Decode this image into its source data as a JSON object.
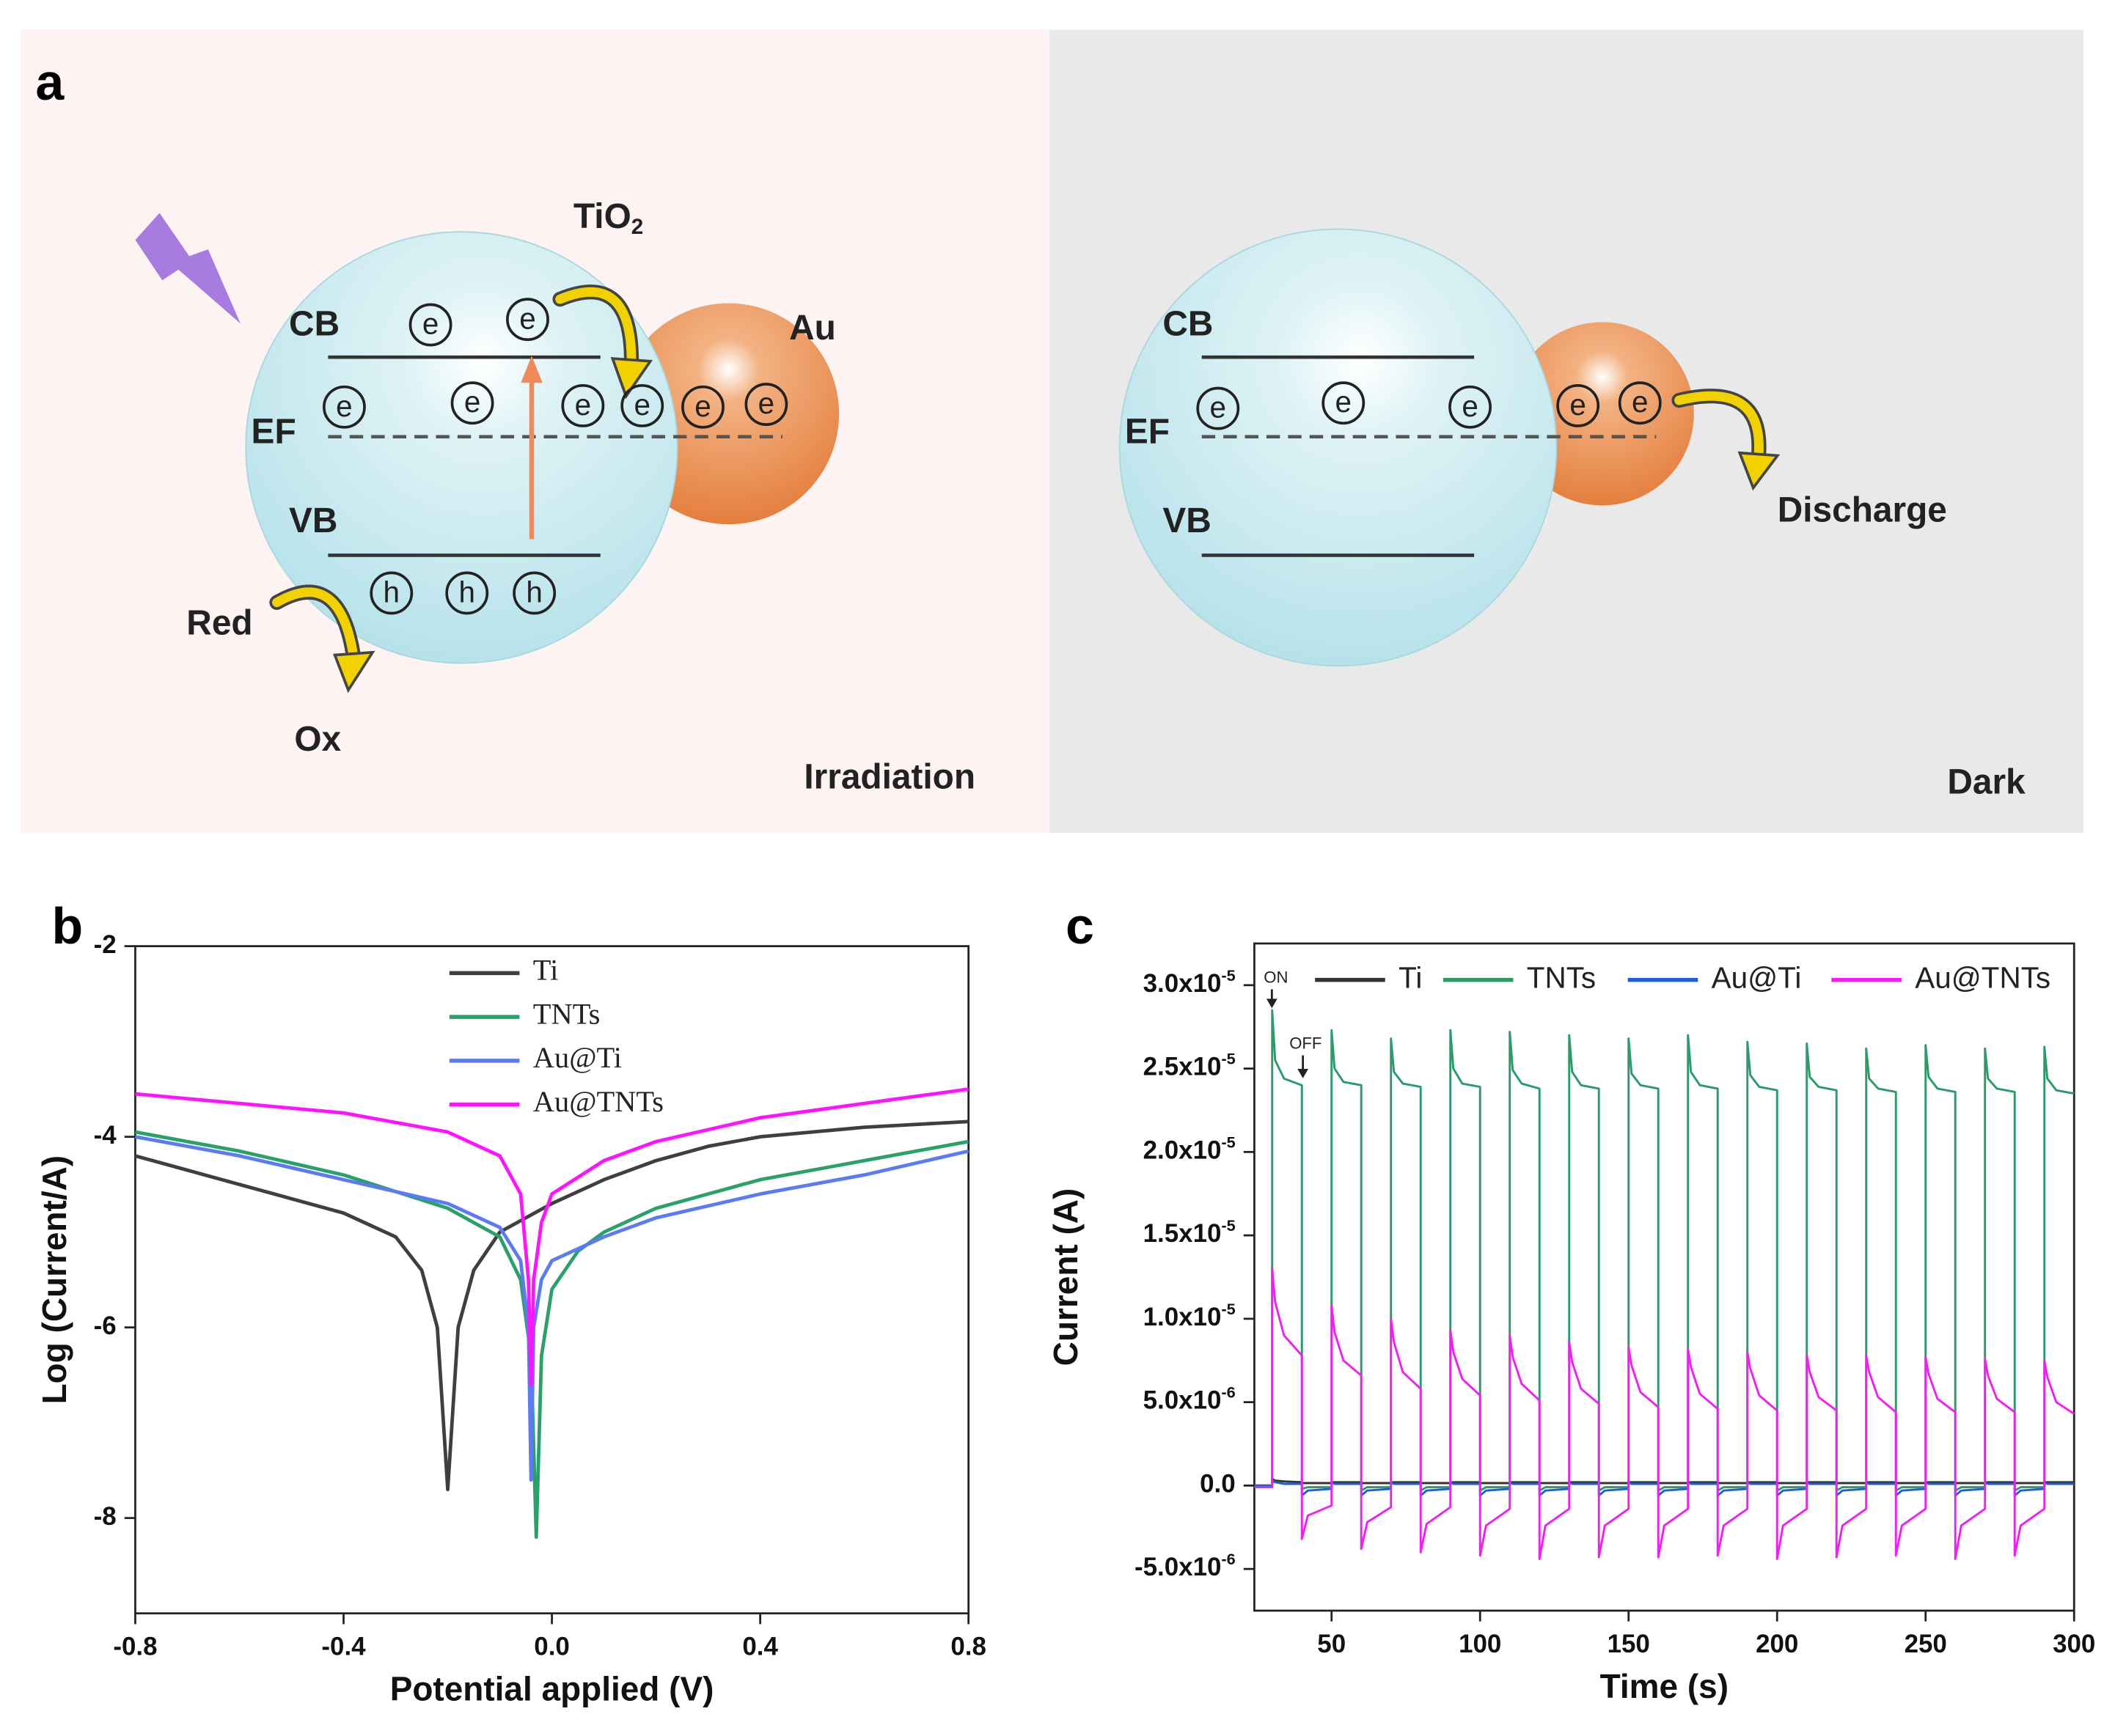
{
  "panel_a": {
    "label": "a",
    "left": {
      "material": "TiO2",
      "cb": "CB",
      "ef": "EF",
      "vb": "VB",
      "metal": "Au",
      "red": "Red",
      "ox": "Ox",
      "condition": "Irradiation"
    },
    "right": {
      "cb": "CB",
      "ef": "EF",
      "vb": "VB",
      "process": "Discharge",
      "condition": "Dark"
    },
    "electron": "e",
    "hole": "h"
  },
  "chart_data": [
    {
      "type": "line",
      "label": "b",
      "xlabel": "Potential applied (V)",
      "ylabel": "Log (Current/A)",
      "xlim": [
        -0.8,
        0.8
      ],
      "ylim": [
        -9,
        -2
      ],
      "xticks": [
        -0.8,
        -0.4,
        {
          "value": 0,
          "label": "0.0"
        },
        0.4,
        0.8
      ],
      "yticks": [
        -2,
        -4,
        -6,
        -8
      ],
      "legend": "top",
      "series": [
        {
          "name": "Ti",
          "color": "#3f3f3f",
          "x": [
            -0.8,
            -0.7,
            -0.6,
            -0.5,
            -0.4,
            -0.3,
            -0.25,
            -0.22,
            -0.2,
            -0.18,
            -0.15,
            -0.1,
            0,
            0.1,
            0.2,
            0.3,
            0.4,
            0.5,
            0.6,
            0.7,
            0.8
          ],
          "values": [
            -4.2,
            -4.35,
            -4.5,
            -4.65,
            -4.8,
            -5.05,
            -5.4,
            -6.0,
            -7.7,
            -6.0,
            -5.4,
            -5.0,
            -4.7,
            -4.45,
            -4.25,
            -4.1,
            -4.0,
            -3.95,
            -3.9,
            -3.87,
            -3.84
          ]
        },
        {
          "name": "TNTs",
          "color": "#2ca06a",
          "x": [
            -0.8,
            -0.6,
            -0.4,
            -0.2,
            -0.1,
            -0.06,
            -0.04,
            -0.03,
            -0.02,
            0,
            0.05,
            0.1,
            0.2,
            0.4,
            0.6,
            0.8
          ],
          "values": [
            -3.95,
            -4.15,
            -4.4,
            -4.75,
            -5.05,
            -5.5,
            -6.3,
            -8.2,
            -6.3,
            -5.6,
            -5.2,
            -5.0,
            -4.75,
            -4.45,
            -4.25,
            -4.05
          ]
        },
        {
          "name": "Au@Ti",
          "color": "#5d7bf0",
          "x": [
            -0.8,
            -0.6,
            -0.4,
            -0.2,
            -0.1,
            -0.06,
            -0.045,
            -0.04,
            -0.035,
            -0.02,
            0,
            0.1,
            0.2,
            0.4,
            0.6,
            0.8
          ],
          "values": [
            -4.0,
            -4.2,
            -4.45,
            -4.7,
            -4.95,
            -5.3,
            -6.0,
            -7.6,
            -6.0,
            -5.5,
            -5.3,
            -5.05,
            -4.85,
            -4.6,
            -4.4,
            -4.15
          ]
        },
        {
          "name": "Au@TNTs",
          "color": "#ff14ff",
          "x": [
            -0.8,
            -0.6,
            -0.4,
            -0.2,
            -0.1,
            -0.06,
            -0.045,
            -0.04,
            -0.035,
            -0.02,
            0,
            0.1,
            0.2,
            0.4,
            0.6,
            0.8
          ],
          "values": [
            -3.55,
            -3.65,
            -3.75,
            -3.95,
            -4.2,
            -4.6,
            -5.5,
            -6.6,
            -5.5,
            -4.9,
            -4.6,
            -4.25,
            -4.05,
            -3.8,
            -3.65,
            -3.5
          ]
        }
      ]
    },
    {
      "type": "line",
      "label": "c",
      "xlabel": "Time (s)",
      "ylabel": "Current (A)",
      "xlim": [
        24,
        300
      ],
      "ylim": [
        -7.5e-06,
        3.25e-05
      ],
      "xticks": [
        50,
        100,
        150,
        200,
        250,
        300
      ],
      "yticks": [
        {
          "value": -5e-06,
          "label": "-5.0x10-6"
        },
        {
          "value": 0,
          "label": "0.0"
        },
        {
          "value": 5e-06,
          "label": "5.0x10-6"
        },
        {
          "value": 1e-05,
          "label": "1.0x10-5"
        },
        {
          "value": 1.5e-05,
          "label": "1.5x10-5"
        },
        {
          "value": 2e-05,
          "label": "2.0x10-5"
        },
        {
          "value": 2.5e-05,
          "label": "2.5x10-5"
        },
        {
          "value": 3e-05,
          "label": "3.0x10-5"
        }
      ],
      "legend": "top",
      "annotations": [
        "ON",
        "OFF"
      ],
      "x": [
        24,
        30,
        30,
        31,
        34,
        40,
        40,
        42,
        50,
        50,
        51,
        54,
        60,
        60,
        62,
        70,
        70,
        71,
        74,
        80,
        80,
        82,
        90,
        90,
        91,
        94,
        100,
        100,
        102,
        110,
        110,
        111,
        114,
        120,
        120,
        122,
        130,
        130,
        131,
        134,
        140,
        140,
        142,
        150,
        150,
        151,
        154,
        160,
        160,
        162,
        170,
        170,
        171,
        174,
        180,
        180,
        182,
        190,
        190,
        191,
        194,
        200,
        200,
        202,
        210,
        210,
        211,
        214,
        220,
        220,
        222,
        230,
        230,
        231,
        234,
        240,
        240,
        242,
        250,
        250,
        251,
        254,
        260,
        260,
        262,
        270,
        270,
        271,
        274,
        280,
        280,
        282,
        290,
        290,
        291,
        294,
        300
      ],
      "series": [
        {
          "name": "Ti",
          "color": "#333333",
          "values": [
            0,
            0,
            4e-07,
            3e-07,
            2.5e-07,
            2e-07,
            1.5e-07,
            1.5e-07,
            1.5e-07,
            2e-07,
            2e-07,
            2e-07,
            2e-07,
            1.5e-07,
            1.5e-07,
            1.5e-07,
            2e-07,
            2e-07,
            2e-07,
            2e-07,
            1.5e-07,
            1.5e-07,
            1.5e-07,
            2e-07,
            2e-07,
            2e-07,
            2e-07,
            1.5e-07,
            1.5e-07,
            1.5e-07,
            2e-07,
            2e-07,
            2e-07,
            2e-07,
            1.5e-07,
            1.5e-07,
            1.5e-07,
            2e-07,
            2e-07,
            2e-07,
            2e-07,
            1.5e-07,
            1.5e-07,
            1.5e-07,
            2e-07,
            2e-07,
            2e-07,
            2e-07,
            1.5e-07,
            1.5e-07,
            1.5e-07,
            2e-07,
            2e-07,
            2e-07,
            2e-07,
            1.5e-07,
            1.5e-07,
            1.5e-07,
            2e-07,
            2e-07,
            2e-07,
            2e-07,
            1.5e-07,
            1.5e-07,
            1.5e-07,
            2e-07,
            2e-07,
            2e-07,
            2e-07,
            1.5e-07,
            1.5e-07,
            1.5e-07,
            2e-07,
            2e-07,
            2e-07,
            2e-07,
            1.5e-07,
            1.5e-07,
            1.5e-07,
            2e-07,
            2e-07,
            2e-07,
            2e-07,
            1.5e-07,
            1.5e-07,
            1.5e-07,
            2e-07,
            2e-07,
            2e-07,
            2e-07,
            1.5e-07,
            1.5e-07,
            1.5e-07,
            2e-07,
            2e-07,
            2e-07,
            2e-07
          ]
        },
        {
          "name": "TNTs",
          "color": "#2e9a6c",
          "values": [
            0,
            0,
            2.85e-05,
            2.55e-05,
            2.44e-05,
            2.4e-05,
            -2e-07,
            -1e-07,
            -1e-07,
            2.73e-05,
            2.5e-05,
            2.42e-05,
            2.4e-05,
            -3e-07,
            -1e-07,
            -1e-07,
            2.68e-05,
            2.48e-05,
            2.41e-05,
            2.39e-05,
            -3e-07,
            -1e-07,
            -1e-07,
            2.73e-05,
            2.5e-05,
            2.41e-05,
            2.39e-05,
            -3e-07,
            -1e-07,
            -1e-07,
            2.72e-05,
            2.49e-05,
            2.41e-05,
            2.38e-05,
            -3e-07,
            -1e-07,
            -1e-07,
            2.7e-05,
            2.48e-05,
            2.4e-05,
            2.38e-05,
            -3e-07,
            -1e-07,
            -1e-07,
            2.68e-05,
            2.47e-05,
            2.4e-05,
            2.38e-05,
            -3e-07,
            -1e-07,
            -1e-07,
            2.7e-05,
            2.48e-05,
            2.4e-05,
            2.38e-05,
            -3e-07,
            -1e-07,
            -1e-07,
            2.66e-05,
            2.46e-05,
            2.39e-05,
            2.37e-05,
            -3e-07,
            -1e-07,
            -1e-07,
            2.65e-05,
            2.45e-05,
            2.39e-05,
            2.37e-05,
            -3e-07,
            -1e-07,
            -1e-07,
            2.62e-05,
            2.44e-05,
            2.38e-05,
            2.36e-05,
            -3e-07,
            -1e-07,
            -1e-07,
            2.64e-05,
            2.45e-05,
            2.38e-05,
            2.36e-05,
            -3e-07,
            -1e-07,
            -1e-07,
            2.62e-05,
            2.44e-05,
            2.38e-05,
            2.36e-05,
            -3e-07,
            -1e-07,
            -1e-07,
            2.63e-05,
            2.44e-05,
            2.37e-05,
            2.35e-05
          ]
        },
        {
          "name": "Au@Ti",
          "color": "#1f5fd0",
          "values": [
            0,
            0,
            3e-07,
            2e-07,
            1e-07,
            1e-07,
            -6e-07,
            -3e-07,
            -2e-07,
            2e-07,
            1e-07,
            1e-07,
            1e-07,
            -6e-07,
            -3e-07,
            -2e-07,
            2e-07,
            1e-07,
            1e-07,
            1e-07,
            -6e-07,
            -3e-07,
            -2e-07,
            2e-07,
            1e-07,
            1e-07,
            1e-07,
            -6e-07,
            -3e-07,
            -2e-07,
            2e-07,
            1e-07,
            1e-07,
            1e-07,
            -6e-07,
            -3e-07,
            -2e-07,
            2e-07,
            1e-07,
            1e-07,
            1e-07,
            -6e-07,
            -3e-07,
            -2e-07,
            2e-07,
            1e-07,
            1e-07,
            1e-07,
            -6e-07,
            -3e-07,
            -2e-07,
            2e-07,
            1e-07,
            1e-07,
            1e-07,
            -6e-07,
            -3e-07,
            -2e-07,
            2e-07,
            1e-07,
            1e-07,
            1e-07,
            -6e-07,
            -3e-07,
            -2e-07,
            2e-07,
            1e-07,
            1e-07,
            1e-07,
            -6e-07,
            -3e-07,
            -2e-07,
            2e-07,
            1e-07,
            1e-07,
            1e-07,
            -6e-07,
            -3e-07,
            -2e-07,
            2e-07,
            1e-07,
            1e-07,
            1e-07,
            -6e-07,
            -3e-07,
            -2e-07,
            2e-07,
            1e-07,
            1e-07,
            1e-07,
            -6e-07,
            -3e-07,
            -2e-07,
            2e-07,
            1e-07,
            1e-07,
            1e-07
          ]
        },
        {
          "name": "Au@TNTs",
          "color": "#ee22ee",
          "values": [
            -1e-07,
            -1e-07,
            1.3e-05,
            1.1e-05,
            9e-06,
            7.8e-06,
            -3.2e-06,
            -1.8e-06,
            -1.2e-06,
            1.08e-05,
            9.2e-06,
            7.5e-06,
            6.6e-06,
            -3.8e-06,
            -2.2e-06,
            -1.3e-06,
            1e-05,
            8.6e-06,
            6.8e-06,
            5.8e-06,
            -4e-06,
            -2.3e-06,
            -1.3e-06,
            9.3e-06,
            8e-06,
            6.4e-06,
            5.4e-06,
            -4.2e-06,
            -2.4e-06,
            -1.4e-06,
            9e-06,
            7.7e-06,
            6.1e-06,
            5.1e-06,
            -4.4e-06,
            -2.4e-06,
            -1.4e-06,
            8.6e-06,
            7.4e-06,
            5.8e-06,
            4.9e-06,
            -4.3e-06,
            -2.4e-06,
            -1.4e-06,
            8.3e-06,
            7.2e-06,
            5.6e-06,
            4.7e-06,
            -4.3e-06,
            -2.4e-06,
            -1.4e-06,
            8.2e-06,
            7.1e-06,
            5.5e-06,
            4.6e-06,
            -4.2e-06,
            -2.4e-06,
            -1.4e-06,
            8e-06,
            7e-06,
            5.4e-06,
            4.5e-06,
            -4.4e-06,
            -2.4e-06,
            -1.4e-06,
            7.8e-06,
            6.8e-06,
            5.3e-06,
            4.5e-06,
            -4.3e-06,
            -2.4e-06,
            -1.4e-06,
            7.8e-06,
            6.8e-06,
            5.3e-06,
            4.4e-06,
            -4.2e-06,
            -2.4e-06,
            -1.4e-06,
            7.7e-06,
            6.7e-06,
            5.2e-06,
            4.4e-06,
            -4.4e-06,
            -2.4e-06,
            -1.4e-06,
            7.6e-06,
            6.6e-06,
            5.2e-06,
            4.4e-06,
            -4.2e-06,
            -2.4e-06,
            -1.4e-06,
            7.5e-06,
            6.5e-06,
            5e-06,
            4.3e-06
          ]
        }
      ]
    }
  ]
}
